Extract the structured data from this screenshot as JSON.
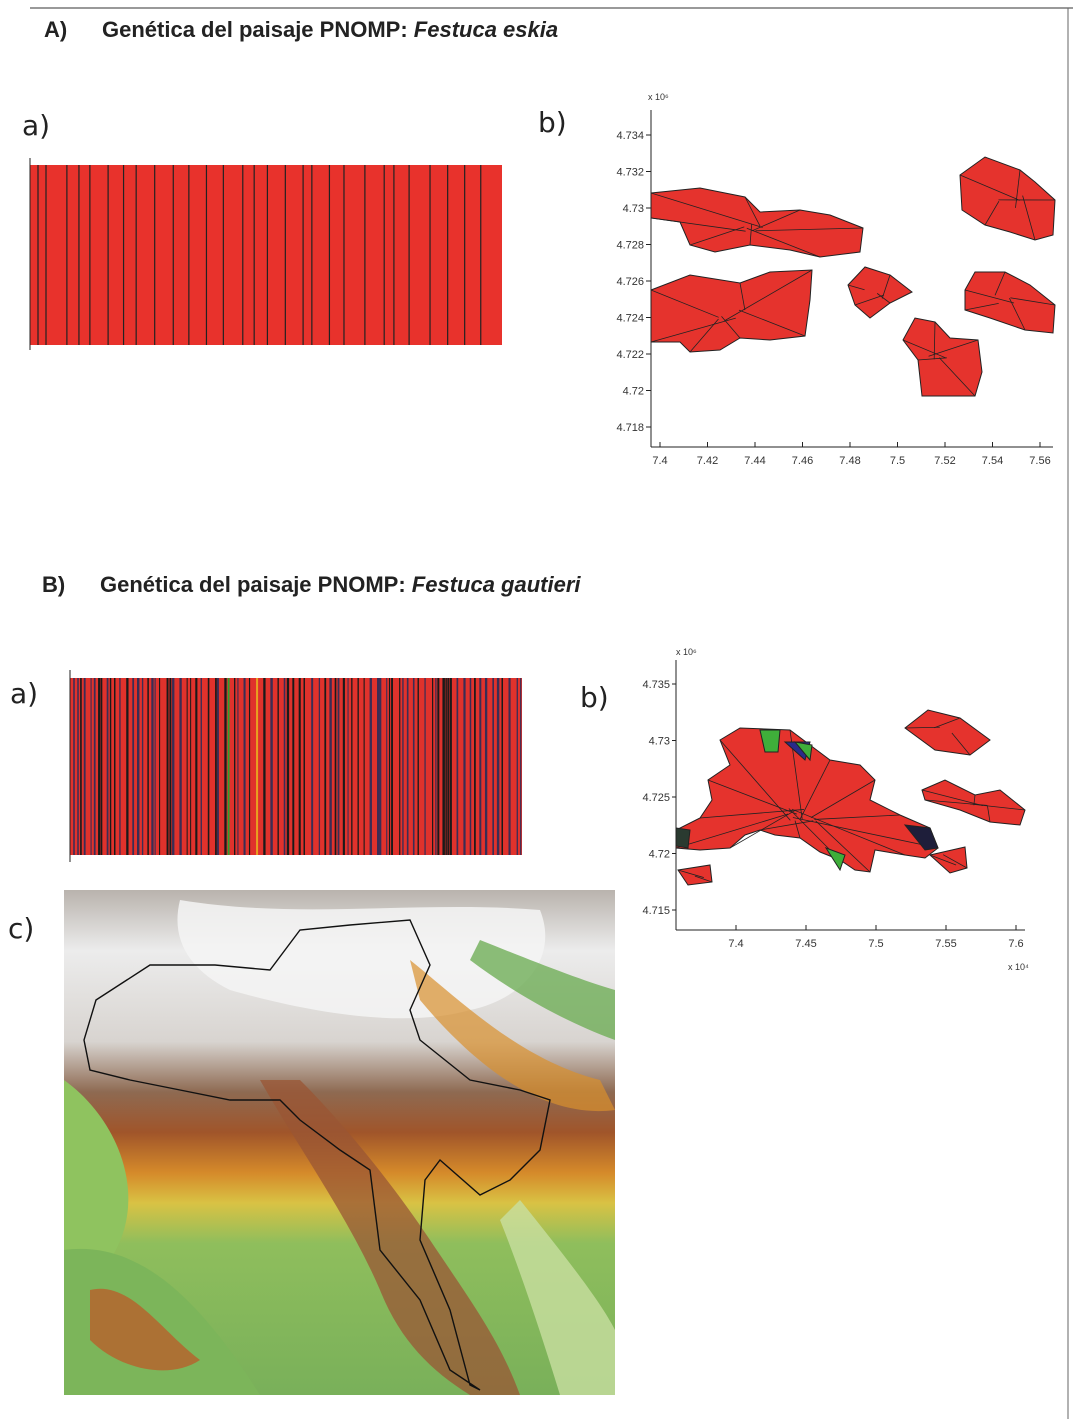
{
  "sections": [
    {
      "label": "A)",
      "title": "Genética del paisaje PNOMP:",
      "species": "Festuca eskia",
      "panel_a": {
        "label": "a)"
      },
      "panel_b": {
        "label": "b)",
        "y_multiplier": "x 10⁶",
        "yticks": [
          4.734,
          4.732,
          4.73,
          4.728,
          4.726,
          4.724,
          4.722,
          4.72,
          4.718
        ],
        "xticks": [
          7.4,
          7.42,
          7.44,
          7.46,
          7.48,
          7.5,
          7.52,
          7.54,
          7.56
        ]
      }
    },
    {
      "label": "B)",
      "title": "Genética del paisaje PNOMP:",
      "species": "Festuca gautieri",
      "panel_a": {
        "label": "a)"
      },
      "panel_b": {
        "label": "b)",
        "y_multiplier": "x 10⁶",
        "x_multiplier": "x 10⁴",
        "yticks": [
          4.735,
          4.73,
          4.725,
          4.72,
          4.715
        ],
        "xticks": [
          7.4,
          7.45,
          7.5,
          7.55,
          7.6
        ]
      },
      "panel_c": {
        "label": "c)"
      }
    }
  ]
}
